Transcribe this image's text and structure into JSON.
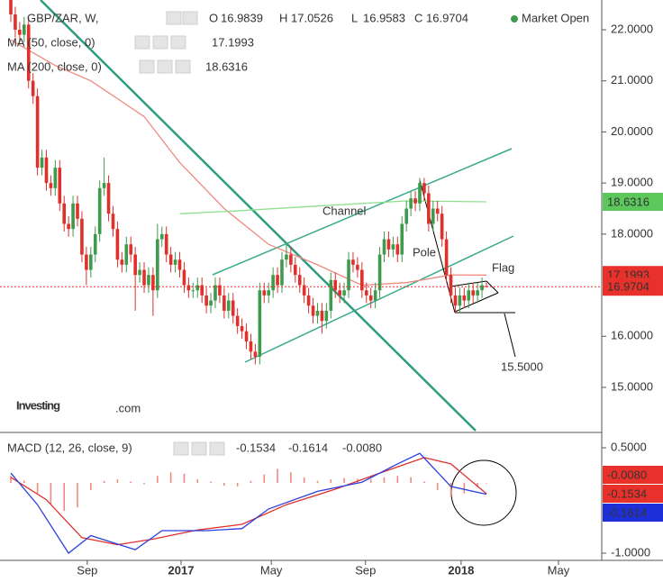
{
  "chart_data": [
    {
      "type": "candlestick",
      "title": "GBP/ZAR, W,",
      "status": "Market Open",
      "ohlc_letters": [
        "O",
        "H",
        "L",
        "C"
      ],
      "open": [
        22.6,
        22.3,
        22.0,
        21.9,
        22.1,
        21.0,
        20.7,
        19.3,
        19.5,
        19.0,
        18.9,
        19.3,
        18.6,
        18.2,
        18.1,
        18.6,
        18.3,
        17.6,
        17.3,
        17.6,
        18.0,
        18.9,
        19.0,
        18.4,
        18.1,
        17.5,
        17.4,
        17.8,
        17.6,
        17.2,
        17.3,
        17.0,
        17.2,
        16.9,
        17.9,
        18.0,
        17.6,
        17.4,
        17.5,
        17.3,
        17.0,
        16.9,
        16.9,
        17.0,
        16.8,
        16.6,
        16.7,
        17.0,
        16.8,
        16.5,
        16.7,
        16.4,
        16.2,
        16.1,
        15.9,
        15.7,
        15.6,
        16.9,
        16.8,
        16.9,
        17.2,
        17.0,
        17.5,
        17.6,
        17.4,
        17.2,
        17.0,
        16.8,
        16.6,
        16.4,
        16.5,
        16.3,
        16.5,
        17.1,
        16.9,
        16.8,
        16.9,
        17.5,
        17.4,
        17.3,
        16.9,
        16.8,
        16.7,
        16.9,
        17.6,
        17.9,
        17.7,
        17.8,
        17.6,
        18.2,
        18.5,
        18.7,
        18.6,
        19.0,
        18.8,
        18.2,
        18.5,
        18.4,
        17.9,
        17.2,
        16.8,
        16.6,
        16.8,
        16.7,
        16.9,
        16.8,
        16.9,
        16.9839
      ],
      "high": [
        22.75,
        22.45,
        22.15,
        22.25,
        22.25,
        21.15,
        20.85,
        19.65,
        19.65,
        19.15,
        19.45,
        19.45,
        18.75,
        18.35,
        18.75,
        18.75,
        18.45,
        17.75,
        17.75,
        18.15,
        19.05,
        19.5,
        19.15,
        18.55,
        18.25,
        17.65,
        17.95,
        17.95,
        17.75,
        17.45,
        17.45,
        17.35,
        17.35,
        18.2,
        18.15,
        18.15,
        17.75,
        17.65,
        17.65,
        17.45,
        17.15,
        17.05,
        17.15,
        17.15,
        16.95,
        16.85,
        17.15,
        17.15,
        16.95,
        16.85,
        16.85,
        16.55,
        16.35,
        16.25,
        16.05,
        15.85,
        17.05,
        17.05,
        17.05,
        17.35,
        17.35,
        17.65,
        17.8,
        17.75,
        17.55,
        17.35,
        17.15,
        16.95,
        16.75,
        16.65,
        16.65,
        16.65,
        17.25,
        17.25,
        17.05,
        17.05,
        17.65,
        17.65,
        17.55,
        17.45,
        17.05,
        16.95,
        17.05,
        17.75,
        18.05,
        18.05,
        17.95,
        17.95,
        18.35,
        18.65,
        18.85,
        18.85,
        19.1,
        19.1,
        18.95,
        18.65,
        18.65,
        18.55,
        18.05,
        17.35,
        16.95,
        16.95,
        16.95,
        17.05,
        17.05,
        17.05,
        17.15,
        17.0526
      ],
      "low": [
        22.15,
        21.85,
        21.75,
        21.75,
        20.85,
        20.55,
        19.15,
        19.15,
        18.85,
        18.75,
        18.75,
        18.45,
        18.05,
        17.95,
        17.95,
        18.15,
        17.45,
        17.0,
        17.15,
        17.45,
        17.85,
        18.75,
        18.25,
        17.95,
        17.35,
        17.25,
        17.25,
        17.45,
        16.5,
        17.05,
        16.85,
        16.85,
        16.4,
        16.75,
        17.75,
        17.45,
        17.25,
        17.25,
        17.15,
        16.85,
        16.75,
        16.75,
        16.75,
        16.65,
        16.45,
        16.45,
        16.55,
        16.65,
        16.35,
        16.35,
        16.25,
        16.05,
        15.95,
        15.75,
        15.55,
        15.45,
        15.45,
        16.65,
        16.65,
        16.75,
        16.85,
        16.85,
        17.35,
        17.25,
        17.05,
        16.85,
        16.65,
        16.45,
        16.25,
        16.25,
        16.05,
        16.15,
        16.35,
        16.75,
        16.65,
        16.65,
        16.75,
        17.25,
        17.15,
        16.75,
        16.65,
        16.55,
        16.55,
        16.75,
        17.45,
        17.55,
        17.55,
        17.45,
        17.45,
        18.05,
        18.35,
        18.45,
        18.45,
        18.65,
        18.05,
        18.05,
        18.25,
        17.75,
        17.05,
        16.65,
        16.45,
        16.45,
        16.55,
        16.55,
        16.65,
        16.65,
        16.75,
        16.9583
      ],
      "close": [
        22.3,
        22.0,
        21.9,
        22.1,
        21.0,
        20.7,
        19.3,
        19.5,
        19.0,
        18.9,
        19.3,
        18.6,
        18.2,
        18.1,
        18.6,
        18.3,
        17.6,
        17.3,
        17.6,
        18.0,
        18.9,
        19.0,
        18.4,
        18.1,
        17.5,
        17.4,
        17.8,
        17.6,
        17.2,
        17.3,
        17.0,
        17.2,
        16.9,
        17.9,
        18.0,
        17.6,
        17.4,
        17.5,
        17.3,
        17.0,
        16.9,
        16.9,
        17.0,
        16.8,
        16.6,
        16.7,
        17.0,
        16.8,
        16.5,
        16.7,
        16.4,
        16.2,
        16.1,
        15.9,
        15.7,
        15.6,
        16.9,
        16.8,
        16.9,
        17.2,
        17.0,
        17.5,
        17.6,
        17.4,
        17.2,
        17.0,
        16.8,
        16.6,
        16.4,
        16.5,
        16.3,
        16.5,
        17.1,
        16.9,
        16.8,
        16.9,
        17.5,
        17.4,
        17.3,
        16.9,
        16.8,
        16.7,
        16.9,
        17.6,
        17.9,
        17.7,
        17.8,
        17.6,
        18.2,
        18.5,
        18.7,
        18.6,
        19.0,
        18.8,
        18.2,
        18.5,
        18.4,
        17.9,
        17.2,
        16.8,
        16.6,
        16.8,
        16.7,
        16.9,
        16.8,
        16.9,
        17.0,
        16.9704
      ],
      "up_color": "#3e9a4c",
      "down_color": "#e0302b",
      "series": [
        {
          "name": "MA (50, close, 0)",
          "color": "#f08a80",
          "x": [
            0,
            10,
            18,
            30,
            38,
            48,
            58,
            69,
            79,
            89,
            99,
            107
          ],
          "values": [
            21.8,
            21.3,
            21.0,
            20.3,
            19.4,
            18.5,
            17.8,
            17.4,
            17.0,
            17.05,
            17.2,
            17.1993
          ]
        },
        {
          "name": "MA (200, close, 0)",
          "color": "#8fe08f",
          "x": [
            38,
            50,
            69,
            89,
            107
          ],
          "values": [
            18.4,
            18.45,
            18.55,
            18.65,
            18.6316
          ]
        }
      ],
      "xlim": [
        -2.43,
        132.94
      ],
      "ylim": [
        14.118,
        22.582
      ],
      "yticks": [
        {
          "value": 22,
          "label": "22.0000"
        },
        {
          "value": 21,
          "label": "21.0000"
        },
        {
          "value": 20,
          "label": "20.0000"
        },
        {
          "value": 19,
          "label": "19.0000"
        },
        {
          "value": 18,
          "label": "18.0000"
        },
        {
          "value": 16,
          "label": "16.0000"
        },
        {
          "value": 15,
          "label": "15.0000"
        }
      ],
      "xticks": [
        {
          "value": 17.2,
          "label": "Sep"
        },
        {
          "value": 38.3,
          "label": "2017"
        },
        {
          "value": 58.6,
          "label": "May"
        },
        {
          "value": 79.8,
          "label": "Sep"
        },
        {
          "value": 101.3,
          "label": "2018"
        },
        {
          "value": 123.2,
          "label": "May"
        }
      ],
      "annotations": [
        "Channel",
        "Pole",
        "Flag",
        "15.5000"
      ],
      "logo": [
        "Investing",
        ".com"
      ]
    },
    {
      "type": "macd",
      "title": "MACD (12, 26, close, 9)",
      "xlim": [
        -2.43,
        132.94
      ],
      "ylim": [
        -1.1026,
        0.6923
      ],
      "yticks": [
        {
          "value": 0.5,
          "label": "0.5000"
        },
        {
          "value": -1,
          "label": "-1.0000"
        }
      ],
      "histogram": {
        "color": "#f08a80",
        "x": [
          0,
          3,
          6,
          9,
          12,
          15,
          18,
          21,
          24,
          27,
          30,
          33,
          36,
          39,
          42,
          45,
          48,
          51,
          54,
          57,
          60,
          63,
          66,
          69,
          72,
          75,
          78,
          81,
          84,
          87,
          90,
          93,
          96,
          99,
          102,
          105,
          107
        ],
        "values": [
          0.1,
          0.03,
          -0.15,
          -0.3,
          -0.4,
          -0.35,
          -0.1,
          0.03,
          0.05,
          0.02,
          -0.02,
          0.1,
          0.15,
          0.13,
          0.05,
          0.02,
          -0.04,
          -0.05,
          0.03,
          0.12,
          0.2,
          0.15,
          0.08,
          0.03,
          0.05,
          0.07,
          0.06,
          0.05,
          0.08,
          0.1,
          0.08,
          0.02,
          -0.1,
          -0.2,
          -0.15,
          -0.06,
          -0.008
        ],
        "last_label": "-0.0080"
      },
      "series": [
        {
          "color": "#e0302b",
          "x": [
            0,
            8,
            16,
            24,
            32,
            42,
            52,
            62,
            73,
            83,
            93,
            99,
            107
          ],
          "values": [
            0.08,
            -0.24,
            -0.78,
            -0.88,
            -0.8,
            -0.67,
            -0.59,
            -0.31,
            -0.09,
            0.14,
            0.36,
            0.27,
            -0.1534
          ]
        },
        {
          "color": "#2a3fe0",
          "x": [
            0,
            6,
            13,
            18,
            28,
            34,
            44,
            52,
            58,
            69,
            79,
            87,
            92,
            99,
            107
          ],
          "values": [
            0.14,
            -0.31,
            -1.0,
            -0.75,
            -0.95,
            -0.68,
            -0.68,
            -0.65,
            -0.37,
            -0.12,
            0.01,
            0.27,
            0.42,
            -0.05,
            -0.1614
          ]
        }
      ]
    }
  ]
}
